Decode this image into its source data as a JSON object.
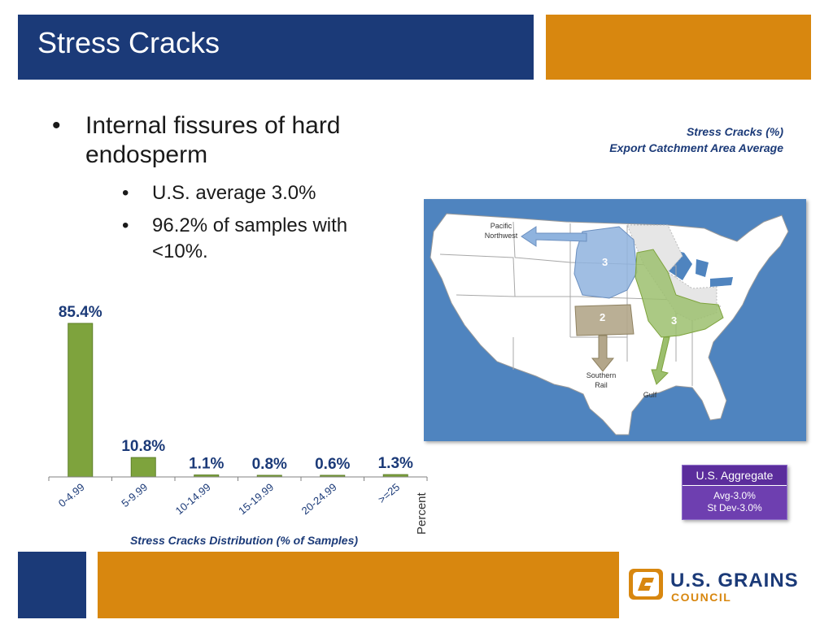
{
  "slide": {
    "title": "Stress Cracks",
    "bullets": {
      "main": "Internal fissures of hard endosperm",
      "main_line1": "Internal fissures of hard",
      "main_line2": "endosperm",
      "sub1": "U.S. average 3.0%",
      "sub2_line1": "96.2% of samples with",
      "sub2_line2": "<10%."
    }
  },
  "map": {
    "caption_line1": "Stress Cracks (%)",
    "caption_line2": "Export Catchment Area Average",
    "labels": {
      "pnw_line1": "Pacific",
      "pnw_line2": "Northwest",
      "southern_line1": "Southern",
      "southern_line2": "Rail",
      "gulf": "Gulf"
    },
    "region_values": {
      "north_region": "3",
      "kansas_region": "2",
      "east_region": "3"
    },
    "colors": {
      "water": "#4f84bf",
      "land": "#ffffff",
      "pnw_region": "#8fb3de",
      "southern_region": "#b3a68a",
      "gulf_region": "#9cbf6e"
    }
  },
  "aggregate": {
    "heading": "U.S. Aggregate",
    "avg": "Avg-3.0%",
    "stdev": "St Dev-3.0%"
  },
  "chart_data": {
    "type": "bar",
    "categories": [
      "0-4.99",
      "5-9.99",
      "10-14.99",
      "15-19.99",
      "20-24.99",
      ">=25"
    ],
    "values": [
      85.4,
      10.8,
      1.1,
      0.8,
      0.6,
      1.3
    ],
    "data_labels": [
      "85.4%",
      "10.8%",
      "1.1%",
      "0.8%",
      "0.6%",
      "1.3%"
    ],
    "xlabel": "Percent",
    "title": "Stress Cracks Distribution (% of Samples)",
    "ylim": [
      0,
      85.4
    ],
    "bar_color": "#7ea33d",
    "label_color": "#1b3a78",
    "grid": false
  },
  "logo": {
    "name": "U.S. GRAINS",
    "sub": "COUNCIL"
  },
  "colors": {
    "title_bar": "#1b3a78",
    "accent": "#d8870f"
  }
}
